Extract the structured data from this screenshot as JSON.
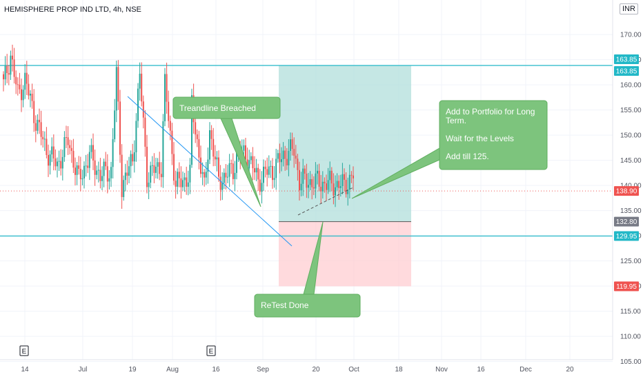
{
  "header": {
    "title": "HEMISPHERE PROP IND LTD, 4h, NSE",
    "currency": "INR"
  },
  "colors": {
    "up": "#26a69a",
    "down": "#ef5350",
    "level": "#22b8c7",
    "trendline": "#2196f3",
    "callout": "#7dc47d",
    "target_zone": "#b2dfdb",
    "stop_zone": "#ffcdd2"
  },
  "chart_data": {
    "type": "candlestick",
    "y_axis": {
      "range": [
        104,
        176
      ],
      "ticks": [
        "170.00",
        "165.00",
        "160.00",
        "155.00",
        "150.00",
        "145.00",
        "140.00",
        "135.00",
        "130.00",
        "125.00",
        "120.00",
        "115.00",
        "110.00",
        "105.00"
      ]
    },
    "x_axis": {
      "ticks": [
        "14",
        "Jul",
        "19",
        "Aug",
        "16",
        "Sep",
        "20",
        "Oct",
        "18",
        "Nov",
        "16",
        "Dec",
        "20"
      ]
    },
    "levels": [
      {
        "price": 163.85,
        "label": "163.85"
      },
      {
        "price": 129.95,
        "label": "129.95"
      }
    ],
    "price_tags": [
      {
        "price": 163.85,
        "label": "163.85",
        "color": "#22b8c7"
      },
      {
        "price": 163.85,
        "label": "163.85",
        "color": "#22b8c7",
        "offset": 1
      },
      {
        "price": 138.9,
        "label": "138.90",
        "color": "#ef5350"
      },
      {
        "price": 132.8,
        "label": "132.80",
        "color": "#787b86"
      },
      {
        "price": 129.95,
        "label": "129.95",
        "color": "#22b8c7"
      },
      {
        "price": 119.95,
        "label": "119.95",
        "color": "#ef5350"
      }
    ],
    "last_price": 138.9,
    "position": {
      "entry": 132.8,
      "target": 163.85,
      "stop": 119.95
    },
    "earnings_markers": [
      "E",
      "E"
    ],
    "annotations": [
      {
        "id": "treandline",
        "lines": [
          "Treandline Breached"
        ]
      },
      {
        "id": "portfolio",
        "lines": [
          "Add to Portfolio for Long",
          "Term.",
          "",
          "Wait for the Levels",
          "",
          "Add till 125."
        ]
      },
      {
        "id": "retest",
        "lines": [
          "ReTest Done"
        ]
      }
    ],
    "anchors": [
      {
        "c": 163,
        "p": 162
      },
      {
        "c": 176,
        "p": 162
      },
      {
        "c": 190,
        "p": 160
      },
      {
        "c": 205,
        "p": 156
      },
      {
        "c": 215,
        "p": 151
      },
      {
        "c": 230,
        "p": 146
      },
      {
        "c": 250,
        "p": 143
      },
      {
        "c": 265,
        "p": 141
      },
      {
        "c": 290,
        "p": 140
      },
      {
        "c": 305,
        "p": 146
      },
      {
        "c": 320,
        "p": 152
      },
      {
        "c": 332,
        "p": 154
      },
      {
        "c": 345,
        "p": 152
      },
      {
        "c": 360,
        "p": 149
      },
      {
        "c": 372,
        "p": 152
      },
      {
        "c": 390,
        "p": 147
      },
      {
        "c": 415,
        "p": 146
      },
      {
        "c": 435,
        "p": 144
      },
      {
        "c": 450,
        "p": 142
      },
      {
        "c": 475,
        "p": 141
      },
      {
        "c": 490,
        "p": 140
      },
      {
        "c": 505,
        "p": 137
      },
      {
        "c": 525,
        "p": 131
      },
      {
        "c": 540,
        "p": 127
      },
      {
        "c": 548,
        "p": 128
      },
      {
        "c": 555,
        "p": 126
      },
      {
        "c": 565,
        "p": 129
      },
      {
        "c": 577,
        "p": 128
      },
      {
        "c": 590,
        "p": 131
      },
      {
        "c": 605,
        "p": 137
      },
      {
        "c": 620,
        "p": 140
      },
      {
        "c": 635,
        "p": 139
      },
      {
        "c": 650,
        "p": 136
      },
      {
        "c": 665,
        "p": 133
      },
      {
        "c": 680,
        "p": 134
      },
      {
        "c": 693,
        "p": 139
      },
      {
        "c": 700,
        "p": 142
      },
      {
        "c": 710,
        "p": 137
      },
      {
        "c": 720,
        "p": 133
      },
      {
        "c": 728,
        "p": 131
      },
      {
        "c": 740,
        "p": 141
      },
      {
        "c": 748,
        "p": 151
      },
      {
        "c": 756,
        "p": 143
      },
      {
        "c": 764,
        "p": 140
      },
      {
        "c": 772,
        "p": 142
      },
      {
        "c": 780,
        "p": 139
      }
    ]
  }
}
